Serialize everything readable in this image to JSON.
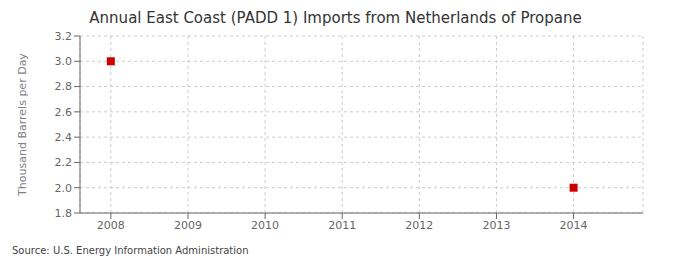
{
  "chart_data": {
    "type": "scatter",
    "title": "Annual East Coast (PADD 1) Imports from Netherlands of Propane",
    "ylabel": "Thousand Barrels per Day",
    "source": "Source: U.S. Energy Information Administration",
    "x": [
      2008,
      2014
    ],
    "values": [
      3.0,
      2.0
    ],
    "color": "#cc0000",
    "marker": "square",
    "xlim": [
      2007.6,
      2014.9
    ],
    "xticks": [
      2008,
      2009,
      2010,
      2011,
      2012,
      2013,
      2014
    ],
    "ylim": [
      1.8,
      3.2
    ],
    "yticks": [
      1.8,
      {
        "value": 2.0,
        "label": "2.0"
      },
      2.2,
      2.4,
      2.6,
      2.8,
      {
        "value": 3.0,
        "label": "3.0"
      },
      3.2
    ],
    "grid": true
  }
}
